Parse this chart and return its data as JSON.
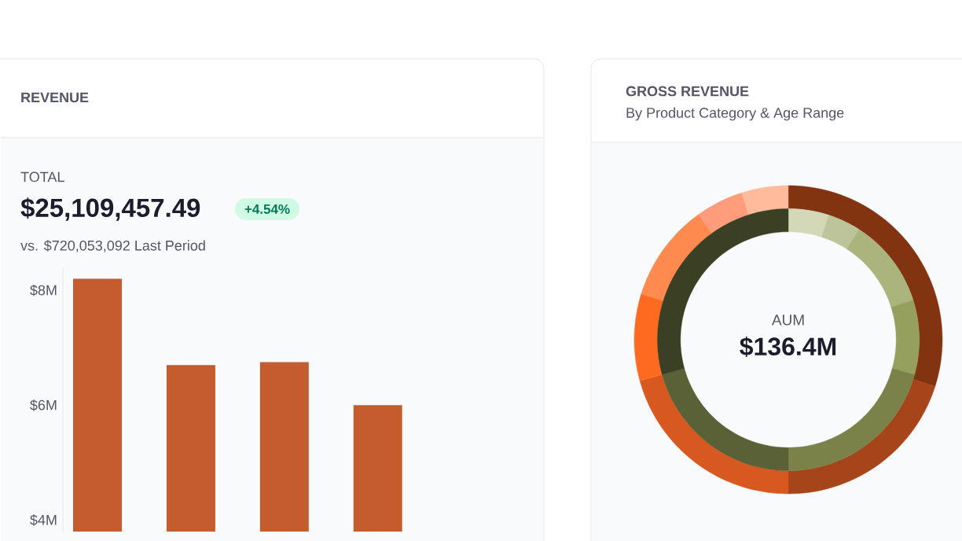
{
  "chart_data": [
    {
      "type": "bar",
      "title": "REVENUE",
      "annotations": [
        "TOTAL",
        "$25,109,457.49",
        "+4.54%",
        "vs. $720,053,092 Last Period"
      ],
      "categories": [
        null,
        null,
        null,
        null
      ],
      "values": [
        8.2,
        6.7,
        6.75,
        6.0
      ],
      "color": "#c45c2e",
      "ylim": [
        3.8,
        8.4
      ],
      "yticks": [
        {
          "value": 4,
          "label": "$4M"
        },
        {
          "value": 6,
          "label": "$6M"
        },
        {
          "value": 8,
          "label": "$8M"
        }
      ],
      "tick_labels": "y"
    },
    {
      "type": "donut",
      "title": "GROSS REVENUE",
      "subtitle": "By Product Category & Age Range",
      "annotations": [
        "AUM",
        "$136.4M"
      ],
      "categories": [
        null,
        null,
        null,
        null,
        null,
        null,
        null
      ],
      "series": [
        {
          "values": [
            29.9,
            20.1,
            20.7,
            9.1,
            10.3,
            5.0,
            4.9
          ],
          "colors": [
            "#823410",
            "#a6441a",
            "#d8591f",
            "#ff6a21",
            "#ff8a4f",
            "#ff9c7c",
            "#ffbb9c"
          ]
        },
        {
          "values": [
            5.0,
            4.1,
            11.0,
            9.2,
            20.7,
            20.7,
            29.3
          ],
          "colors": [
            "#d3d8b8",
            "#bdc49a",
            "#aab47c",
            "#96a05e",
            "#7a8249",
            "#5a6136",
            "#3b3f24"
          ]
        }
      ]
    }
  ]
}
